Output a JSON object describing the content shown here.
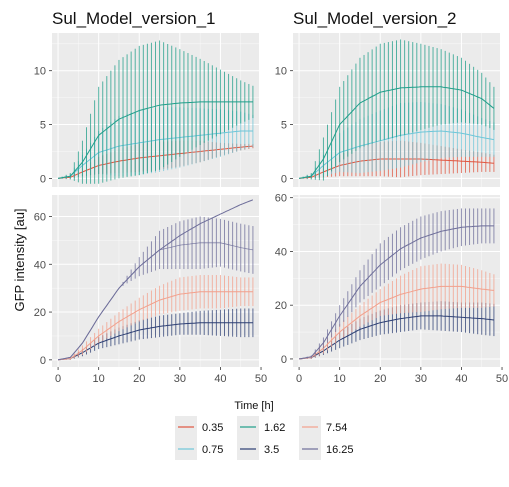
{
  "chart_data": {
    "type": "line",
    "xlabel": "",
    "ylabel": "GFP intensity [au]",
    "legend": {
      "title": "Time [h]",
      "position": "bottom"
    },
    "grid": true,
    "facets": [
      {
        "name": "Sul_Model_version_1",
        "row": 1,
        "col": 1
      },
      {
        "name": "Sul_Model_version_2",
        "row": 1,
        "col": 2
      }
    ],
    "x_ticks": [
      0,
      10,
      20,
      30,
      40,
      50
    ],
    "xlim": [
      -1.5,
      49.5
    ],
    "rows": [
      {
        "ylim": [
          -0.8,
          13.5
        ],
        "y_ticks": [
          0,
          5,
          10
        ],
        "y_tick_labels": [
          "0",
          "5",
          "10"
        ]
      },
      {
        "ylim_left": [
          -3,
          69
        ],
        "y_ticks_left": [
          0,
          20,
          40,
          60
        ],
        "y_tick_labels_left": [
          "0",
          "20",
          "40",
          "60"
        ],
        "ylim_right": [
          -3,
          61
        ],
        "y_ticks_right": [
          0,
          20,
          40,
          60
        ],
        "y_tick_labels_right": [
          "0",
          "20",
          "40",
          "60"
        ]
      }
    ],
    "series": [
      {
        "name": "0.35",
        "color": "#e0553f",
        "panel_row": 1,
        "x": [
          0,
          3,
          6,
          10,
          15,
          20,
          25,
          30,
          35,
          40,
          45,
          48
        ],
        "model_1": {
          "y": [
            0,
            0.1,
            0.6,
            1.2,
            1.6,
            1.9,
            2.1,
            2.3,
            2.5,
            2.7,
            2.9,
            3.0
          ],
          "err": [
            0,
            0.1,
            0.4,
            0.8,
            1.1,
            1.3,
            1.3,
            1.2,
            1.0,
            0.6,
            0.3,
            0.2
          ]
        },
        "model_2": {
          "y": [
            0,
            0.1,
            0.6,
            1.2,
            1.6,
            1.8,
            1.8,
            1.8,
            1.7,
            1.6,
            1.5,
            1.4
          ],
          "err": [
            0,
            0.1,
            0.5,
            1.0,
            1.4,
            1.6,
            1.7,
            1.5,
            1.3,
            1.1,
            0.9,
            0.8
          ]
        }
      },
      {
        "name": "0.75",
        "color": "#6ec6d8",
        "panel_row": 1,
        "x": [
          0,
          3,
          6,
          10,
          15,
          20,
          25,
          30,
          35,
          40,
          45,
          48
        ],
        "model_1": {
          "y": [
            0,
            0.2,
            1.2,
            2.4,
            3.0,
            3.3,
            3.6,
            3.8,
            4.0,
            4.2,
            4.4,
            4.4
          ],
          "err": [
            0,
            0.2,
            1.0,
            2.0,
            2.8,
            3.0,
            3.0,
            2.8,
            2.5,
            2.2,
            1.8,
            1.5
          ]
        },
        "model_2": {
          "y": [
            0,
            0.2,
            1.2,
            2.4,
            3.0,
            3.5,
            4.0,
            4.3,
            4.4,
            4.2,
            3.8,
            3.6
          ],
          "err": [
            0,
            0.2,
            1.0,
            1.8,
            2.5,
            2.8,
            3.0,
            2.8,
            2.5,
            2.2,
            1.8,
            1.6
          ]
        }
      },
      {
        "name": "1.62",
        "color": "#1f9e89",
        "panel_row": 1,
        "x": [
          0,
          3,
          6,
          10,
          15,
          20,
          25,
          30,
          35,
          40,
          45,
          48
        ],
        "model_1": {
          "y": [
            0,
            0.2,
            1.5,
            4.0,
            5.5,
            6.3,
            6.8,
            7.0,
            7.1,
            7.1,
            7.1,
            7.1
          ],
          "err": [
            0,
            0.3,
            2.0,
            4.5,
            5.5,
            6.0,
            6.0,
            5.0,
            4.0,
            3.0,
            2.0,
            1.5
          ]
        },
        "model_2": {
          "y": [
            0,
            0.2,
            1.8,
            5.0,
            7.0,
            8.0,
            8.4,
            8.5,
            8.5,
            8.2,
            7.4,
            6.5
          ],
          "err": [
            0,
            0.3,
            2.0,
            3.5,
            4.2,
            4.5,
            4.5,
            4.0,
            3.5,
            3.0,
            2.4,
            2.0
          ]
        }
      },
      {
        "name": "3.5",
        "color": "#2c3e73",
        "panel_row": 2,
        "x": [
          0,
          3,
          6,
          10,
          15,
          20,
          25,
          30,
          35,
          40,
          45,
          48
        ],
        "model_1": {
          "y": [
            0,
            0.5,
            3,
            7,
            10,
            12.5,
            14,
            15,
            15.5,
            15.5,
            15.5,
            15.5
          ],
          "err": [
            0,
            0.5,
            1.5,
            2.5,
            3.5,
            4.0,
            4.5,
            4.5,
            5.0,
            5.5,
            6.0,
            6.0
          ]
        },
        "model_2": {
          "y": [
            0,
            0.5,
            3,
            7,
            11,
            13.5,
            15,
            16,
            16,
            15.5,
            15,
            14.5
          ],
          "err": [
            0,
            0.5,
            1.5,
            3.0,
            4.0,
            4.5,
            5.0,
            5.0,
            5.5,
            5.5,
            6.0,
            6.0
          ]
        }
      },
      {
        "name": "7.54",
        "color": "#f2a08c",
        "panel_row": 2,
        "x": [
          0,
          3,
          6,
          10,
          15,
          20,
          25,
          30,
          35,
          40,
          45,
          48
        ],
        "model_1": {
          "y": [
            0,
            0.5,
            4,
            10,
            16,
            21,
            25,
            27.5,
            28.5,
            28.5,
            28.5,
            28.5
          ],
          "err": [
            0,
            0.5,
            2,
            3,
            4,
            5,
            6,
            7,
            7,
            7,
            6,
            6
          ]
        },
        "model_2": {
          "y": [
            0,
            0.5,
            4,
            10,
            16,
            21,
            24,
            26,
            27,
            27,
            26,
            25.5
          ],
          "err": [
            0,
            0.5,
            2,
            3,
            4,
            5,
            7,
            8.5,
            8.5,
            8,
            7,
            6
          ]
        }
      },
      {
        "name": "16.25",
        "color": "#6e6e9a",
        "panel_row": 2,
        "x": [
          0,
          3,
          6,
          10,
          15,
          20,
          25,
          30,
          35,
          40,
          45,
          48
        ],
        "model_1": {
          "y": [
            0,
            1,
            7,
            18,
            30,
            39,
            46,
            52,
            57,
            61,
            65,
            67
          ],
          "err": [
            0,
            0,
            0,
            0,
            0,
            0,
            0,
            0,
            0,
            0,
            0,
            0
          ],
          "dots_y": [
            0,
            1,
            7,
            18,
            30,
            39,
            46,
            48,
            49,
            49,
            47,
            46
          ],
          "dots_err": [
            0,
            0,
            0,
            0,
            0,
            4,
            8,
            10,
            11,
            10,
            10,
            10
          ]
        },
        "model_2": {
          "y": [
            0,
            0.8,
            6,
            16,
            27,
            35,
            41,
            45,
            47.5,
            49,
            49.5,
            49.5
          ],
          "err": [
            0,
            0.5,
            2,
            4,
            6,
            8,
            8,
            8,
            7.5,
            7,
            6.5,
            6.5
          ]
        }
      }
    ]
  },
  "legend_layout": [
    [
      "0.35",
      "1.62",
      "7.54"
    ],
    [
      "0.75",
      "3.5",
      "16.25"
    ]
  ]
}
